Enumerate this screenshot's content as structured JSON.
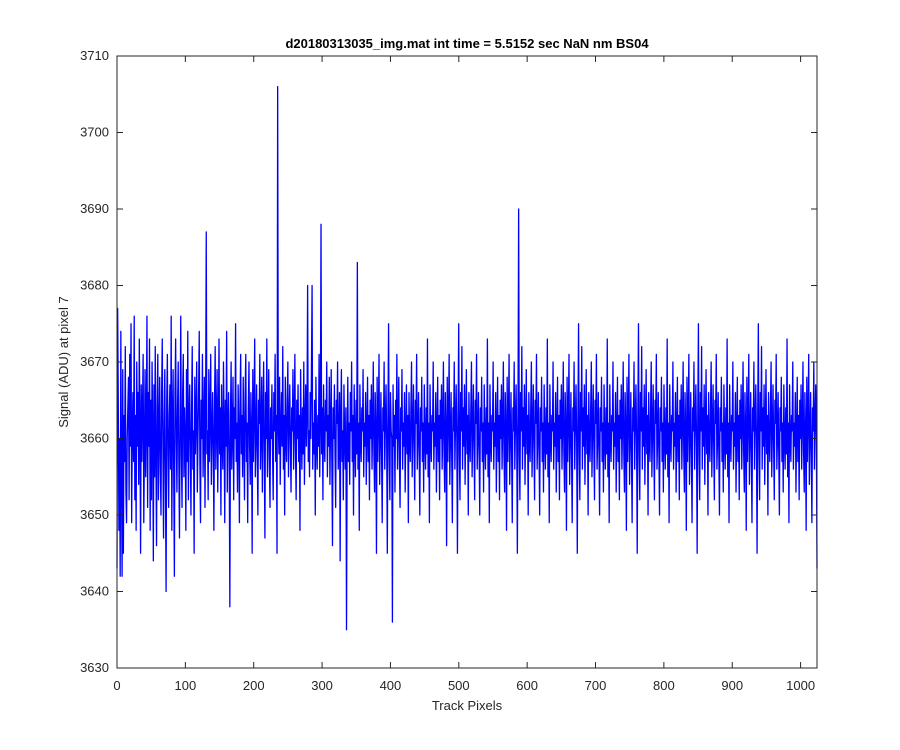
{
  "chart_data": {
    "type": "line",
    "title": "d20180313035_img.mat int time = 5.5152 sec  NaN nm BS04",
    "xlabel": "Track Pixels",
    "ylabel": "Signal (ADU) at pixel 7",
    "xlim": [
      0,
      1024
    ],
    "ylim": [
      3630,
      3710
    ],
    "xticks": [
      0,
      100,
      200,
      300,
      400,
      500,
      600,
      700,
      800,
      900,
      1000
    ],
    "yticks": [
      3630,
      3640,
      3650,
      3660,
      3670,
      3680,
      3690,
      3700,
      3710
    ],
    "grid": false,
    "line_color": "#0000ff",
    "series": [
      {
        "values": [
          3643,
          3677,
          3665,
          3648,
          3660,
          3642,
          3674,
          3656,
          3642,
          3669,
          3645,
          3663,
          3657,
          3672,
          3653,
          3649,
          3660,
          3664,
          3668,
          3652,
          3671,
          3659,
          3675,
          3649,
          3661,
          3666,
          3657,
          3676,
          3652,
          3663,
          3648,
          3670,
          3659,
          3666,
          3654,
          3673,
          3661,
          3645,
          3667,
          3657,
          3664,
          3671,
          3649,
          3658,
          3669,
          3655,
          3662,
          3676,
          3651,
          3666,
          3659,
          3673,
          3648,
          3665,
          3652,
          3670,
          3661,
          3644,
          3667,
          3655,
          3672,
          3658,
          3646,
          3664,
          3671,
          3652,
          3661,
          3668,
          3656,
          3650,
          3666,
          3673,
          3659,
          3647,
          3662,
          3669,
          3654,
          3640,
          3665,
          3671,
          3658,
          3651,
          3663,
          3667,
          3656,
          3676,
          3648,
          3662,
          3669,
          3655,
          3642,
          3666,
          3673,
          3660,
          3653,
          3664,
          3670,
          3657,
          3647,
          3662,
          3676,
          3658,
          3651,
          3666,
          3671,
          3655,
          3664,
          3660,
          3648,
          3669,
          3657,
          3674,
          3652,
          3662,
          3667,
          3659,
          3650,
          3664,
          3672,
          3656,
          3661,
          3645,
          3668,
          3658,
          3663,
          3670,
          3653,
          3660,
          3666,
          3674,
          3657,
          3649,
          3665,
          3660,
          3671,
          3655,
          3662,
          3668,
          3651,
          3664,
          3687,
          3658,
          3661,
          3652,
          3669,
          3657,
          3663,
          3671,
          3654,
          3660,
          3666,
          3659,
          3648,
          3665,
          3672,
          3656,
          3662,
          3669,
          3653,
          3661,
          3673,
          3658,
          3664,
          3650,
          3667,
          3660,
          3656,
          3670,
          3662,
          3649,
          3665,
          3659,
          3674,
          3653,
          3661,
          3666,
          3658,
          3638,
          3663,
          3670,
          3656,
          3661,
          3668,
          3652,
          3664,
          3660,
          3675,
          3657,
          3662,
          3653,
          3667,
          3661,
          3649,
          3665,
          3671,
          3658,
          3663,
          3655,
          3668,
          3660,
          3652,
          3666,
          3671,
          3657,
          3662,
          3649,
          3664,
          3670,
          3659,
          3654,
          3666,
          3661,
          3645,
          3669,
          3657,
          3664,
          3673,
          3655,
          3660,
          3667,
          3658,
          3650,
          3665,
          3662,
          3671,
          3656,
          3661,
          3668,
          3653,
          3663,
          3670,
          3658,
          3647,
          3666,
          3660,
          3673,
          3655,
          3662,
          3669,
          3657,
          3651,
          3664,
          3660,
          3667,
          3658,
          3652,
          3666,
          3661,
          3671,
          3657,
          3663,
          3645,
          3706,
          3662,
          3658,
          3668,
          3654,
          3661,
          3666,
          3659,
          3672,
          3656,
          3663,
          3650,
          3668,
          3660,
          3657,
          3665,
          3670,
          3655,
          3662,
          3667,
          3659,
          3653,
          3664,
          3661,
          3669,
          3656,
          3662,
          3671,
          3658,
          3652,
          3665,
          3660,
          3667,
          3657,
          3663,
          3648,
          3669,
          3661,
          3656,
          3664,
          3658,
          3670,
          3654,
          3662,
          3667,
          3659,
          3663,
          3680,
          3657,
          3661,
          3655,
          3666,
          3660,
          3669,
          3680,
          3656,
          3662,
          3658,
          3665,
          3650,
          3668,
          3660,
          3656,
          3663,
          3659,
          3671,
          3655,
          3662,
          3688,
          3658,
          3664,
          3652,
          3667,
          3660,
          3657,
          3665,
          3661,
          3670,
          3655,
          3663,
          3659,
          3668,
          3654,
          3662,
          3669,
          3657,
          3646,
          3664,
          3660,
          3667,
          3658,
          3651,
          3665,
          3662,
          3670,
          3656,
          3660,
          3666,
          3644,
          3663,
          3669,
          3657,
          3661,
          3652,
          3667,
          3660,
          3656,
          3664,
          3635,
          3659,
          3668,
          3657,
          3662,
          3654,
          3666,
          3661,
          3670,
          3657,
          3663,
          3650,
          3667,
          3660,
          3655,
          3665,
          3658,
          3683,
          3656,
          3662,
          3648,
          3667,
          3660,
          3657,
          3664,
          3661,
          3669,
          3655,
          3662,
          3659,
          3666,
          3654,
          3661,
          3668,
          3657,
          3663,
          3652,
          3665,
          3660,
          3667,
          3656,
          3662,
          3670,
          3658,
          3653,
          3666,
          3661,
          3645,
          3668,
          3657,
          3663,
          3671,
          3654,
          3660,
          3666,
          3658,
          3649,
          3664,
          3661,
          3670,
          3656,
          3662,
          3667,
          3660,
          3645,
          3663,
          3675,
          3658,
          3652,
          3666,
          3661,
          3660,
          3636,
          3667,
          3659,
          3663,
          3653,
          3665,
          3660,
          3671,
          3656,
          3662,
          3668,
          3657,
          3651,
          3664,
          3661,
          3669,
          3656,
          3662,
          3659,
          3666,
          3653,
          3661,
          3667,
          3658,
          3663,
          3649,
          3666,
          3660,
          3657,
          3664,
          3670,
          3655,
          3661,
          3667,
          3659,
          3652,
          3665,
          3662,
          3671,
          3656,
          3660,
          3666,
          3658,
          3650,
          3664,
          3661,
          3668,
          3657,
          3662,
          3653,
          3667,
          3660,
          3656,
          3664,
          3658,
          3673,
          3655,
          3662,
          3649,
          3667,
          3660,
          3657,
          3663,
          3661,
          3670,
          3656,
          3662,
          3659,
          3666,
          3653,
          3661,
          3668,
          3657,
          3663,
          3652,
          3665,
          3660,
          3667,
          3656,
          3662,
          3670,
          3658,
          3653,
          3666,
          3661,
          3646,
          3668,
          3657,
          3663,
          3671,
          3654,
          3660,
          3666,
          3658,
          3649,
          3664,
          3661,
          3670,
          3656,
          3662,
          3667,
          3660,
          3645,
          3663,
          3675,
          3658,
          3652,
          3666,
          3661,
          3672,
          3656,
          3664,
          3659,
          3667,
          3654,
          3662,
          3669,
          3658,
          3663,
          3650,
          3666,
          3660,
          3657,
          3664,
          3670,
          3655,
          3661,
          3667,
          3659,
          3652,
          3665,
          3662,
          3671,
          3656,
          3660,
          3666,
          3658,
          3650,
          3664,
          3661,
          3668,
          3657,
          3662,
          3653,
          3667,
          3660,
          3656,
          3664,
          3658,
          3673,
          3655,
          3662,
          3649,
          3667,
          3660,
          3657,
          3663,
          3661,
          3670,
          3656,
          3662,
          3659,
          3666,
          3653,
          3661,
          3668,
          3657,
          3663,
          3652,
          3665,
          3660,
          3667,
          3656,
          3662,
          3670,
          3658,
          3653,
          3666,
          3661,
          3648,
          3668,
          3657,
          3663,
          3671,
          3654,
          3660,
          3666,
          3658,
          3649,
          3664,
          3661,
          3670,
          3656,
          3662,
          3667,
          3660,
          3645,
          3663,
          3690,
          3658,
          3652,
          3666,
          3661,
          3672,
          3656,
          3664,
          3659,
          3667,
          3654,
          3662,
          3669,
          3658,
          3663,
          3650,
          3666,
          3660,
          3657,
          3664,
          3670,
          3655,
          3661,
          3667,
          3659,
          3652,
          3665,
          3662,
          3671,
          3656,
          3660,
          3666,
          3658,
          3650,
          3664,
          3661,
          3668,
          3657,
          3662,
          3653,
          3667,
          3660,
          3656,
          3664,
          3658,
          3673,
          3655,
          3662,
          3649,
          3667,
          3660,
          3657,
          3663,
          3661,
          3670,
          3656,
          3662,
          3659,
          3666,
          3653,
          3661,
          3668,
          3657,
          3663,
          3652,
          3665,
          3660,
          3667,
          3656,
          3662,
          3670,
          3658,
          3653,
          3666,
          3661,
          3648,
          3668,
          3657,
          3663,
          3671,
          3654,
          3660,
          3666,
          3658,
          3649,
          3664,
          3661,
          3670,
          3656,
          3662,
          3667,
          3660,
          3645,
          3663,
          3675,
          3658,
          3652,
          3666,
          3661,
          3672,
          3656,
          3664,
          3659,
          3667,
          3654,
          3662,
          3669,
          3658,
          3663,
          3650,
          3666,
          3660,
          3657,
          3664,
          3670,
          3655,
          3661,
          3667,
          3659,
          3652,
          3665,
          3662,
          3671,
          3656,
          3660,
          3666,
          3658,
          3650,
          3664,
          3661,
          3668,
          3657,
          3662,
          3653,
          3667,
          3660,
          3656,
          3664,
          3658,
          3673,
          3655,
          3662,
          3649,
          3667,
          3660,
          3657,
          3663,
          3661,
          3670,
          3656,
          3662,
          3659,
          3666,
          3653,
          3661,
          3668,
          3657,
          3663,
          3652,
          3665,
          3660,
          3667,
          3656,
          3662,
          3670,
          3658,
          3653,
          3666,
          3661,
          3648,
          3668,
          3657,
          3663,
          3671,
          3654,
          3660,
          3666,
          3658,
          3649,
          3664,
          3661,
          3670,
          3656,
          3662,
          3667,
          3660,
          3645,
          3663,
          3675,
          3658,
          3652,
          3666,
          3661,
          3672,
          3656,
          3664,
          3659,
          3667,
          3654,
          3662,
          3669,
          3658,
          3663,
          3650,
          3666,
          3660,
          3657,
          3664,
          3670,
          3655,
          3661,
          3667,
          3659,
          3652,
          3665,
          3662,
          3671,
          3656,
          3660,
          3666,
          3658,
          3650,
          3664,
          3661,
          3668,
          3657,
          3662,
          3653,
          3667,
          3660,
          3656,
          3664,
          3658,
          3673,
          3655,
          3662,
          3649,
          3667,
          3660,
          3657,
          3663,
          3661,
          3670,
          3656,
          3662,
          3659,
          3666,
          3653,
          3661,
          3668,
          3657,
          3663,
          3652,
          3665,
          3660,
          3667,
          3656,
          3662,
          3670,
          3658,
          3653,
          3666,
          3661,
          3648,
          3668,
          3657,
          3663,
          3671,
          3654,
          3660,
          3666,
          3658,
          3649,
          3664,
          3661,
          3670,
          3656,
          3662,
          3667,
          3660,
          3645,
          3663,
          3675,
          3658,
          3652,
          3666,
          3661,
          3672,
          3656,
          3664,
          3659,
          3667,
          3654,
          3662,
          3669,
          3658,
          3663,
          3650,
          3666,
          3660,
          3657,
          3664,
          3670,
          3655,
          3661,
          3667,
          3659,
          3652,
          3665,
          3662,
          3671,
          3656,
          3660,
          3666,
          3658,
          3650,
          3664,
          3661,
          3668,
          3657,
          3662,
          3653,
          3667,
          3660,
          3656,
          3664,
          3658,
          3673,
          3655,
          3662,
          3649,
          3667,
          3660,
          3657,
          3663,
          3661,
          3670,
          3656,
          3662,
          3659,
          3666,
          3653,
          3661,
          3668,
          3657,
          3663,
          3652,
          3665,
          3660,
          3667,
          3656,
          3662,
          3670,
          3658,
          3653,
          3666,
          3661,
          3648,
          3668,
          3657,
          3663,
          3671,
          3654,
          3660,
          3666,
          3658,
          3649,
          3664,
          3661,
          3670,
          3656,
          3662,
          3667,
          3660,
          3645,
          3663,
          3675,
          3658,
          3652,
          3666,
          3661,
          3672,
          3656,
          3664,
          3659,
          3667,
          3654,
          3662,
          3669,
          3658,
          3663,
          3650,
          3666,
          3660,
          3657,
          3664,
          3670,
          3655,
          3661,
          3667,
          3659,
          3652,
          3665,
          3662,
          3671,
          3656,
          3660,
          3666,
          3658,
          3650,
          3664,
          3661,
          3668,
          3657,
          3662,
          3653,
          3667,
          3660,
          3656,
          3664,
          3658,
          3673,
          3655,
          3662,
          3649,
          3667,
          3660,
          3657,
          3663,
          3661,
          3670,
          3656,
          3662,
          3659,
          3666,
          3653,
          3661,
          3668,
          3657,
          3663,
          3652,
          3665,
          3660,
          3667,
          3656,
          3662,
          3670,
          3658,
          3653,
          3666,
          3661,
          3648,
          3668,
          3657,
          3663,
          3671,
          3654,
          3660,
          3666,
          3658,
          3649,
          3664,
          3661,
          3670,
          3656,
          3662,
          3667,
          3660,
          3643
        ]
      }
    ]
  }
}
